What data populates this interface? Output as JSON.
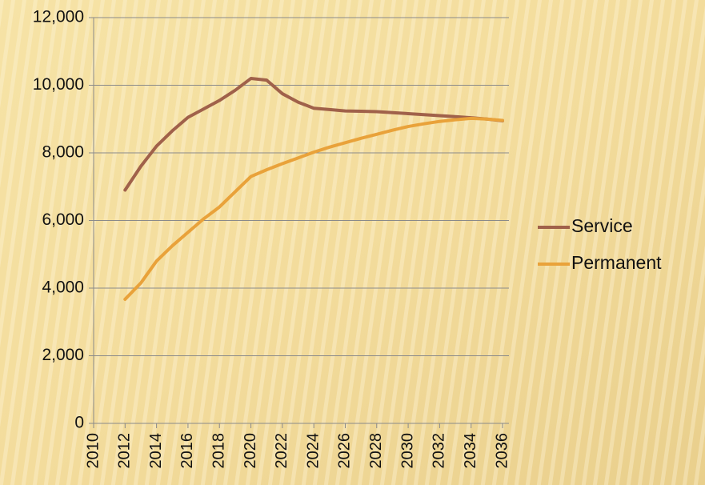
{
  "chart_data": {
    "type": "line",
    "x": [
      2012,
      2013,
      2014,
      2015,
      2016,
      2017,
      2018,
      2019,
      2020,
      2021,
      2022,
      2023,
      2024,
      2025,
      2026,
      2027,
      2028,
      2029,
      2030,
      2031,
      2032,
      2033,
      2034,
      2035,
      2036
    ],
    "series": [
      {
        "name": "Service",
        "color": "#a0614a",
        "values": [
          6900,
          7600,
          8200,
          8650,
          9050,
          9300,
          9550,
          9850,
          10200,
          10150,
          9750,
          9500,
          9320,
          9280,
          9240,
          9230,
          9220,
          9190,
          9160,
          9130,
          9100,
          9070,
          9040,
          9000,
          8950
        ]
      },
      {
        "name": "Permanent",
        "color": "#e9a23a",
        "values": [
          3670,
          4150,
          4800,
          5250,
          5650,
          6050,
          6400,
          6850,
          7300,
          7500,
          7680,
          7850,
          8020,
          8170,
          8300,
          8430,
          8550,
          8670,
          8780,
          8860,
          8930,
          8980,
          9020,
          9000,
          8960
        ]
      }
    ],
    "xlim": [
      2010,
      2036
    ],
    "xticks": [
      2010,
      2012,
      2014,
      2016,
      2018,
      2020,
      2022,
      2024,
      2026,
      2028,
      2030,
      2032,
      2034,
      2036
    ],
    "ylim": [
      0,
      12000
    ],
    "yticks": [
      0,
      {
        "value": 2000,
        "label": "2,000"
      },
      {
        "value": 4000,
        "label": "4,000"
      },
      {
        "value": 6000,
        "label": "6,000"
      },
      {
        "value": 8000,
        "label": "8,000"
      },
      {
        "value": 10000,
        "label": "10,000"
      },
      {
        "value": 12000,
        "label": "12,000"
      }
    ],
    "grid": true,
    "legend": "right"
  }
}
